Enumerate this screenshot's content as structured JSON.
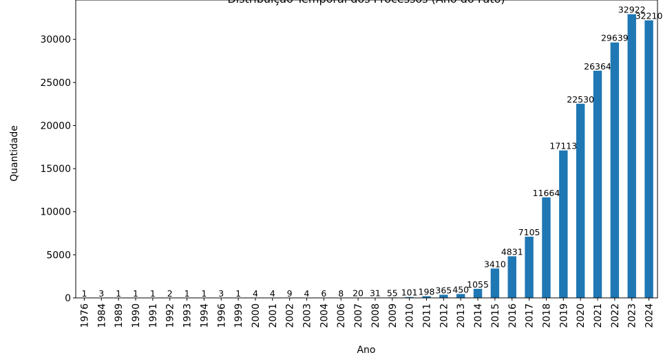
{
  "chart_data": {
    "type": "bar",
    "title": "Distribuição Temporal dos Processos (Ano do Fato)",
    "xlabel": "Ano",
    "ylabel": "Quantidade",
    "categories": [
      "1976",
      "1984",
      "1989",
      "1990",
      "1991",
      "1992",
      "1993",
      "1994",
      "1996",
      "1999",
      "2000",
      "2001",
      "2002",
      "2003",
      "2004",
      "2006",
      "2007",
      "2008",
      "2009",
      "2010",
      "2011",
      "2012",
      "2013",
      "2014",
      "2015",
      "2016",
      "2017",
      "2018",
      "2019",
      "2020",
      "2021",
      "2022",
      "2023",
      "2024"
    ],
    "values": [
      1,
      3,
      1,
      1,
      1,
      2,
      1,
      1,
      3,
      1,
      4,
      4,
      9,
      4,
      6,
      8,
      20,
      31,
      55,
      101,
      198,
      365,
      450,
      1055,
      3410,
      4831,
      7105,
      11664,
      17113,
      22530,
      26364,
      29639,
      32922,
      32210
    ],
    "ylim": [
      0,
      34568
    ],
    "yticks": [
      0,
      5000,
      10000,
      15000,
      20000,
      25000,
      30000
    ],
    "bar_color": "#1f77b4",
    "grid": false,
    "legend": false
  }
}
